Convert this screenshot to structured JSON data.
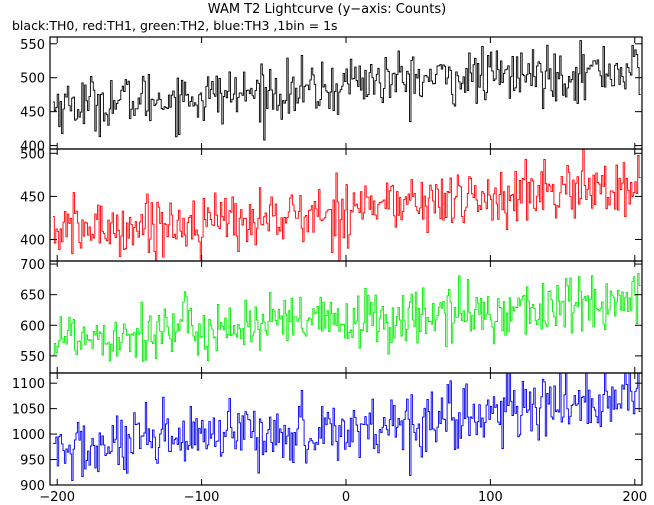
{
  "chart_data": {
    "type": "line",
    "title": "WAM T2 Lightcurve (y−axis: Counts)",
    "subtitle": "black:TH0, red:TH1, green:TH2, blue:TH3 ,1bin = 1s",
    "xlim": [
      -205,
      205
    ],
    "x_ticks": [
      -200,
      -100,
      0,
      100,
      200
    ],
    "x_tick_labels": [
      "−200",
      "−100",
      "0",
      "100",
      "200"
    ],
    "grid": false,
    "panels": [
      {
        "color": "#000000",
        "ylim": [
          395,
          560
        ],
        "y_ticks": [
          400,
          450,
          500,
          550
        ],
        "series": {
          "x": [
            -200,
            -180,
            -160,
            -140,
            -120,
            -100,
            -80,
            -60,
            -40,
            -20,
            -1,
            0,
            20,
            40,
            60,
            80,
            100,
            120,
            140,
            160,
            180,
            200
          ],
          "values": [
            460,
            462,
            465,
            468,
            470,
            472,
            475,
            478,
            480,
            482,
            484,
            500,
            495,
            496,
            498,
            500,
            502,
            504,
            506,
            508,
            510,
            512
          ],
          "noise": 20
        }
      },
      {
        "color": "#ff0000",
        "ylim": [
          375,
          505
        ],
        "y_ticks": [
          400,
          450,
          500
        ],
        "series": {
          "x": [
            -200,
            -180,
            -160,
            -140,
            -120,
            -100,
            -80,
            -60,
            -40,
            -20,
            -1,
            0,
            20,
            40,
            60,
            80,
            100,
            120,
            140,
            160,
            180,
            200
          ],
          "values": [
            410,
            412,
            414,
            416,
            418,
            420,
            422,
            424,
            426,
            428,
            430,
            445,
            440,
            442,
            444,
            446,
            448,
            450,
            455,
            458,
            460,
            462
          ],
          "noise": 17
        }
      },
      {
        "color": "#00ee00",
        "ylim": [
          522,
          705
        ],
        "y_ticks": [
          550,
          600,
          650,
          700
        ],
        "series": {
          "x": [
            -200,
            -180,
            -160,
            -140,
            -120,
            -100,
            -80,
            -60,
            -40,
            -20,
            0,
            20,
            40,
            60,
            80,
            100,
            120,
            140,
            160,
            180,
            200
          ],
          "values": [
            580,
            583,
            586,
            589,
            592,
            595,
            597,
            600,
            602,
            604,
            606,
            608,
            612,
            615,
            618,
            622,
            625,
            628,
            632,
            636,
            638
          ],
          "noise": 24
        }
      },
      {
        "color": "#0000ee",
        "ylim": [
          900,
          1120
        ],
        "y_ticks": [
          900,
          950,
          1000,
          1050,
          1100
        ],
        "series": {
          "x": [
            -200,
            -180,
            -160,
            -140,
            -120,
            -100,
            -80,
            -60,
            -40,
            -20,
            0,
            20,
            40,
            60,
            80,
            100,
            120,
            140,
            160,
            180,
            200
          ],
          "values": [
            965,
            970,
            975,
            980,
            985,
            990,
            994,
            998,
            1002,
            1005,
            1010,
            1015,
            1025,
            1030,
            1035,
            1040,
            1045,
            1055,
            1065,
            1070,
            1075
          ],
          "noise": 32
        }
      }
    ]
  }
}
